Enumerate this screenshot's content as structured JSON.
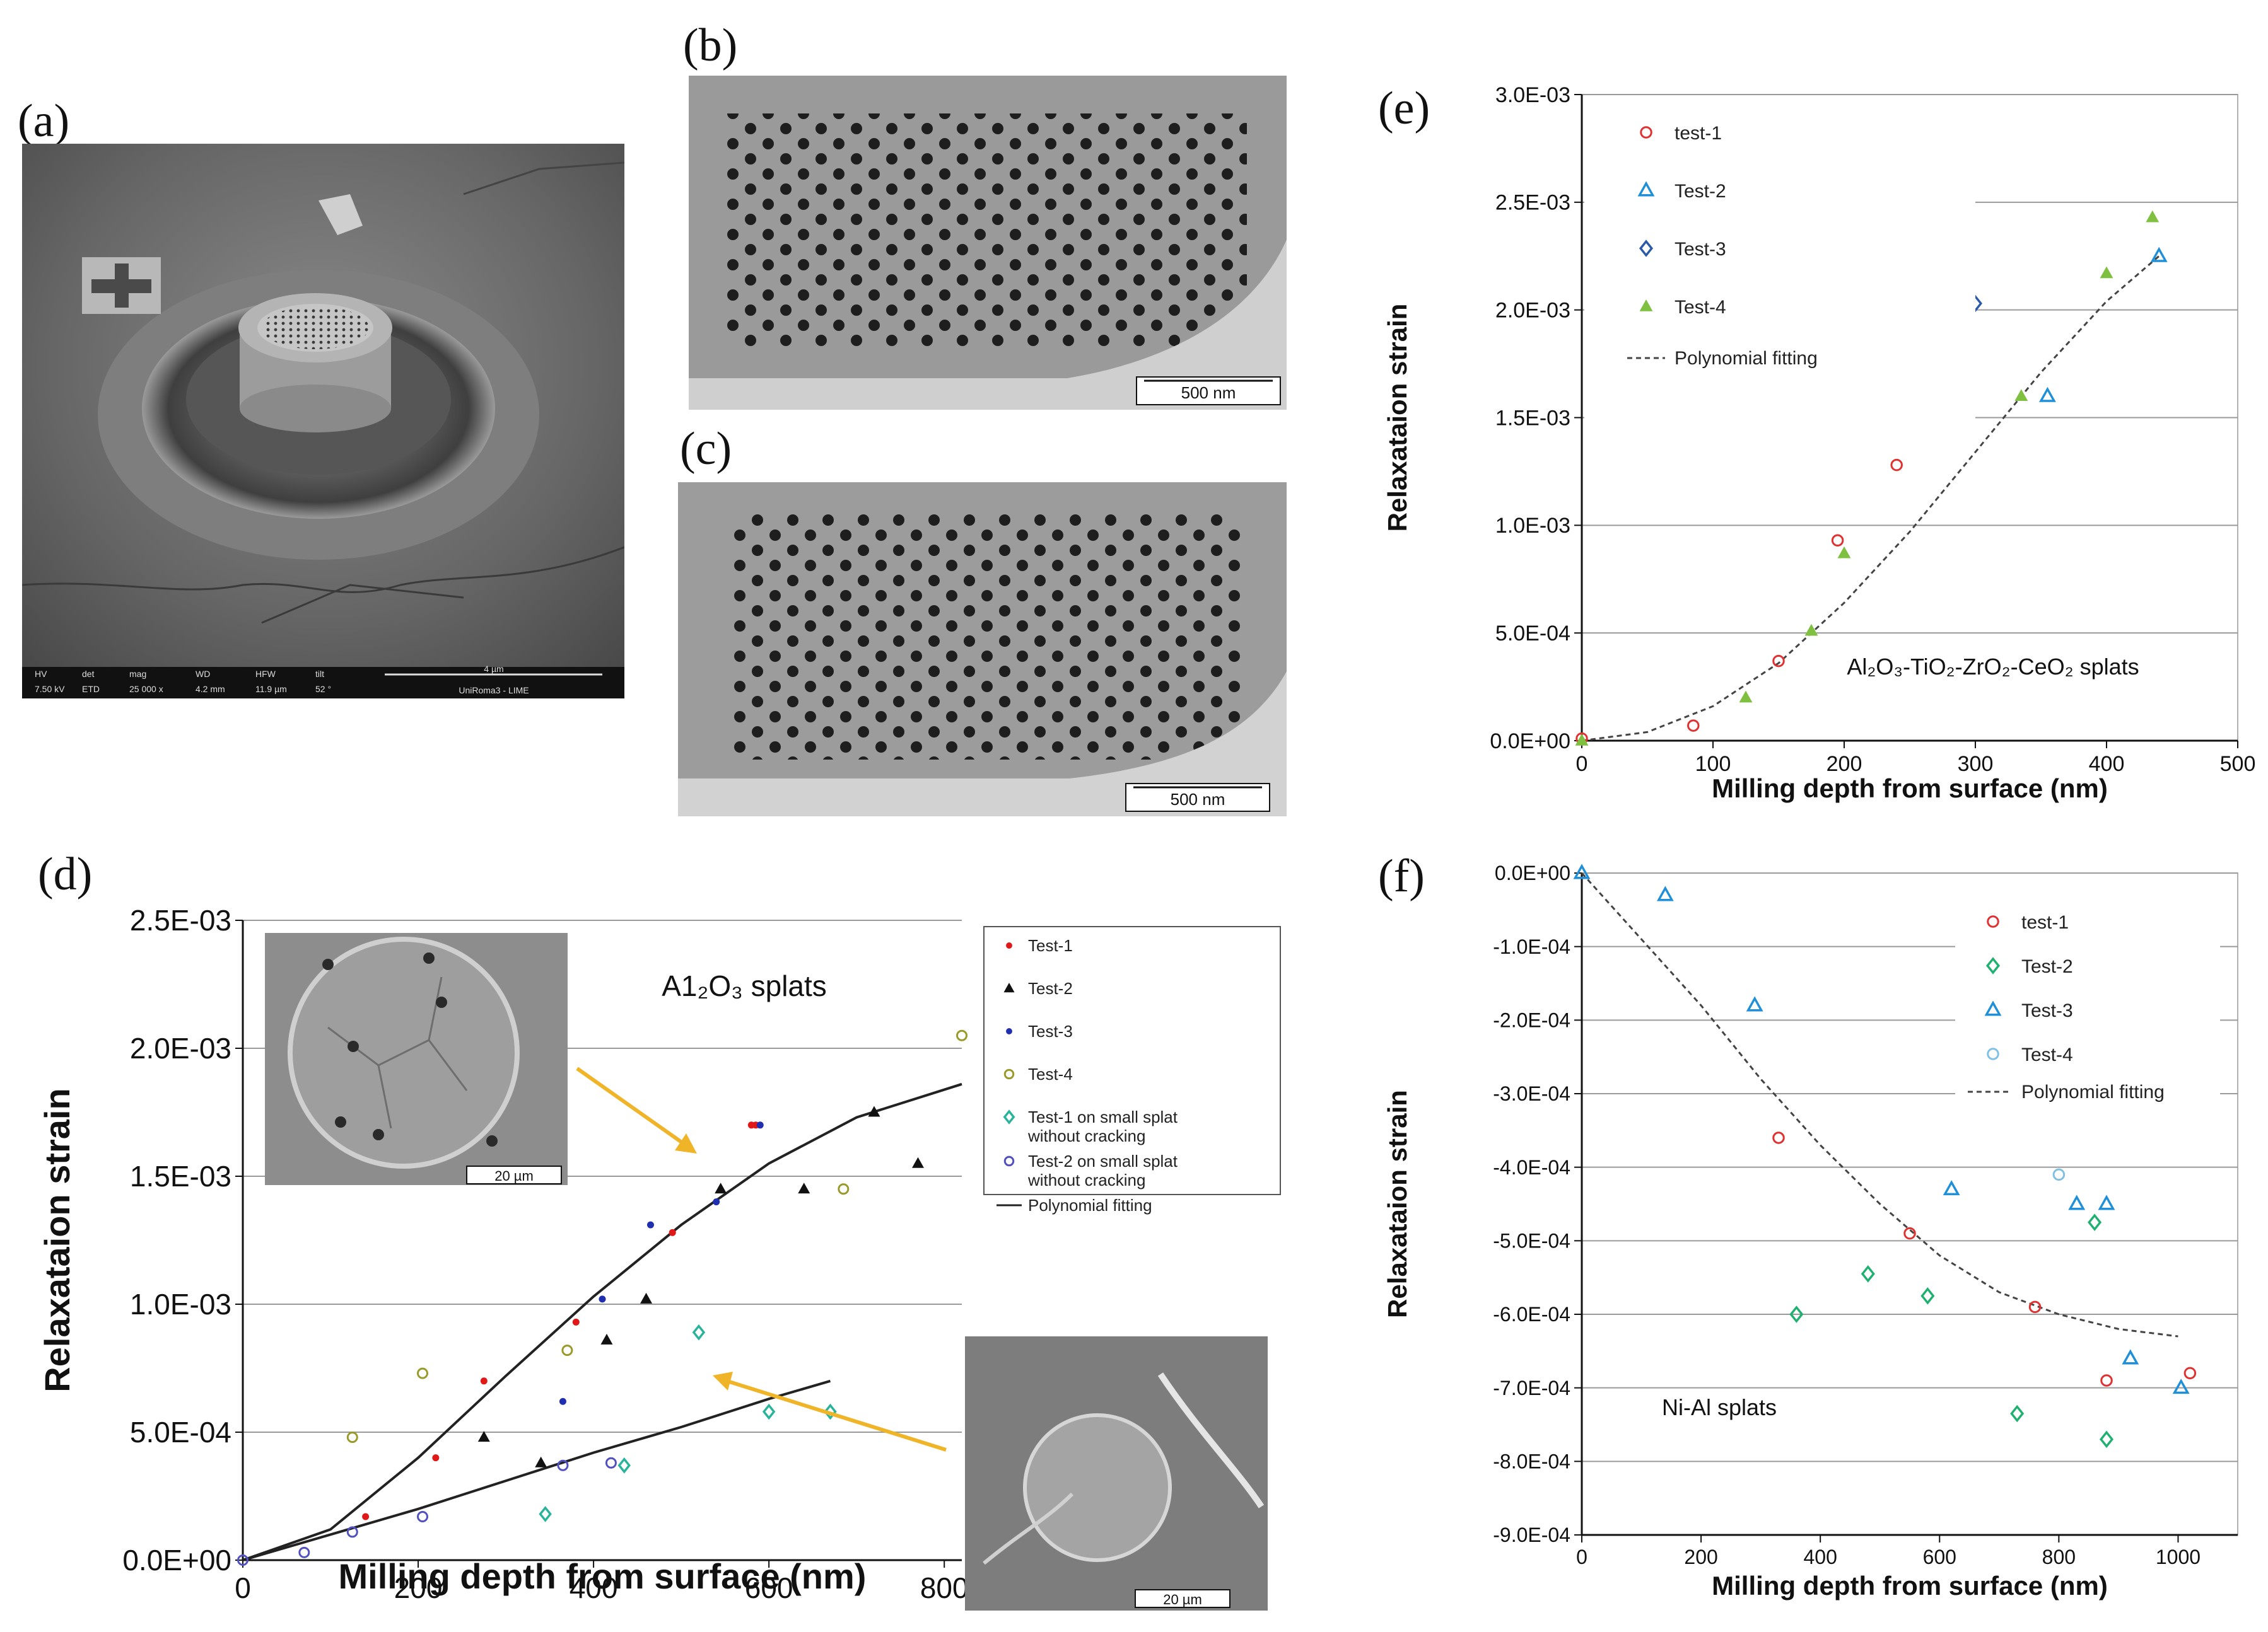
{
  "panels": {
    "a": {
      "letter": "(a)",
      "databar": {
        "labels": [
          "HV",
          "det",
          "mag",
          "WD",
          "HFW",
          "tilt"
        ],
        "values": [
          "7.50 kV",
          "ETD",
          "25 000 x",
          "4.2 mm",
          "11.9 µm",
          "52 °"
        ],
        "scale": "4 µm",
        "institution": "UniRoma3 - LIME"
      }
    },
    "b": {
      "letter": "(b)",
      "scale": "500 nm"
    },
    "c": {
      "letter": "(c)",
      "scale": "500 nm"
    },
    "d": {
      "letter": "(d)",
      "inset_top_scale": "20 µm",
      "inset_bottom_scale": "20 µm"
    },
    "e": {
      "letter": "(e)"
    },
    "f": {
      "letter": "(f)"
    }
  },
  "chart_data": [
    {
      "id": "d",
      "type": "scatter",
      "title": "A1₂O₃ splats",
      "xlabel": "Milling depth from surface (nm)",
      "ylabel": "Relaxataion strain",
      "xlim": [
        0,
        820
      ],
      "ylim": [
        0,
        0.0025
      ],
      "xticks": [
        "0",
        "200",
        "400",
        "600",
        "800"
      ],
      "yticks": [
        "0.0E+00",
        "5.0E-04",
        "1.0E-03",
        "1.5E-03",
        "2.0E-03",
        "2.5E-03"
      ],
      "grid": true,
      "legend_position": "top-right",
      "series": [
        {
          "name": "Test-1",
          "color": "#e01818",
          "marker": "dot",
          "x": [
            140,
            220,
            275,
            380,
            490,
            580,
            585
          ],
          "y": [
            0.00017,
            0.0004,
            0.0007,
            0.00093,
            0.00128,
            0.0017,
            0.0017
          ]
        },
        {
          "name": "Test-2",
          "color": "#111111",
          "marker": "triangle",
          "x": [
            275,
            340,
            415,
            460,
            545,
            640,
            720,
            770
          ],
          "y": [
            0.00048,
            0.00038,
            0.00086,
            0.00102,
            0.00145,
            0.00145,
            0.00175,
            0.00155
          ]
        },
        {
          "name": "Test-3",
          "color": "#1f2fb0",
          "marker": "dot",
          "x": [
            365,
            410,
            465,
            540,
            590
          ],
          "y": [
            0.00062,
            0.00102,
            0.00131,
            0.0014,
            0.0017
          ]
        },
        {
          "name": "Test-4",
          "color": "#9a9a2a",
          "marker": "circle",
          "x": [
            125,
            205,
            370,
            685,
            820
          ],
          "y": [
            0.00048,
            0.00073,
            0.00082,
            0.00145,
            0.00205
          ]
        },
        {
          "name": "Test-1 on small splat without cracking",
          "color": "#29b39a",
          "marker": "diamond",
          "x": [
            345,
            435,
            520,
            600,
            670
          ],
          "y": [
            0.00018,
            0.00037,
            0.00089,
            0.00058,
            0.00058
          ]
        },
        {
          "name": "Test-2 on small splat without cracking",
          "color": "#5050c0",
          "marker": "circle",
          "x": [
            0,
            70,
            125,
            205,
            365,
            420
          ],
          "y": [
            0.0,
            3e-05,
            0.00011,
            0.00017,
            0.00037,
            0.00038
          ]
        }
      ],
      "fits": [
        {
          "name": "Polynomial fitting",
          "style": "solid",
          "x": [
            0,
            100,
            200,
            300,
            400,
            500,
            600,
            700,
            820
          ],
          "y": [
            0.0,
            0.00012,
            0.0004,
            0.00072,
            0.00103,
            0.00131,
            0.00155,
            0.00173,
            0.00186
          ]
        },
        {
          "name": "",
          "style": "solid",
          "x": [
            0,
            100,
            200,
            300,
            400,
            500,
            600,
            670
          ],
          "y": [
            0.0,
            0.0001,
            0.0002,
            0.00031,
            0.00042,
            0.00052,
            0.00063,
            0.0007
          ]
        }
      ],
      "legend": [
        "Test-1",
        "Test-2",
        "Test-3",
        "Test-4",
        "Test-1 on small splat without cracking",
        "Test-2 on small splat without cracking",
        "Polynomial fitting"
      ]
    },
    {
      "id": "e",
      "type": "scatter",
      "annotation": "Al₂O₃-TiO₂-ZrO₂-CeO₂ splats",
      "xlabel": "Milling  depth from surface (nm)",
      "ylabel": "Relaxataion strain",
      "xlim": [
        0,
        500
      ],
      "ylim": [
        0,
        0.003
      ],
      "xticks": [
        "0",
        "100",
        "200",
        "300",
        "400",
        "500"
      ],
      "yticks": [
        "0.0E+00",
        "5.0E-04",
        "1.0E-03",
        "1.5E-03",
        "2.0E-03",
        "2.5E-03",
        "3.0E-03"
      ],
      "grid": true,
      "legend_position": "top-left",
      "series": [
        {
          "name": "test-1",
          "color": "#e03030",
          "marker": "circle",
          "x": [
            0,
            85,
            150,
            195,
            240
          ],
          "y": [
            1e-05,
            7e-05,
            0.00037,
            0.00093,
            0.00128
          ]
        },
        {
          "name": "Test-2",
          "color": "#1f8fd8",
          "marker": "triangle-open",
          "x": [
            355,
            440
          ],
          "y": [
            0.0016,
            0.00225
          ]
        },
        {
          "name": "Test-3",
          "color": "#2a5aa8",
          "marker": "diamond",
          "x": [
            300
          ],
          "y": [
            0.00203
          ]
        },
        {
          "name": "Test-4",
          "color": "#7fc040",
          "marker": "triangle",
          "x": [
            0,
            125,
            175,
            200,
            335,
            400,
            435
          ],
          "y": [
            0.0,
            0.0002,
            0.00051,
            0.00087,
            0.0016,
            0.00217,
            0.00243
          ]
        }
      ],
      "fits": [
        {
          "name": "Polynomial fitting",
          "style": "dashed",
          "x": [
            0,
            50,
            100,
            150,
            200,
            250,
            300,
            350,
            400,
            440
          ],
          "y": [
            0.0,
            4e-05,
            0.00016,
            0.00036,
            0.00064,
            0.00097,
            0.00134,
            0.00171,
            0.00204,
            0.00225
          ]
        }
      ],
      "legend": [
        "test-1",
        "Test-2",
        "Test-3",
        "Test-4",
        "Polynomial fitting"
      ]
    },
    {
      "id": "f",
      "type": "scatter",
      "annotation": "Ni-Al splats",
      "xlabel": "Milling  depth from surface (nm)",
      "ylabel": "Relaxataion strain",
      "xlim": [
        0,
        1100
      ],
      "ylim": [
        -0.0009,
        0
      ],
      "xticks": [
        "0",
        "200",
        "400",
        "600",
        "800",
        "1000"
      ],
      "yticks": [
        "0.0E+00",
        "-1.0E-04",
        "-2.0E-04",
        "-3.0E-04",
        "-4.0E-04",
        "-5.0E-04",
        "-6.0E-04",
        "-7.0E-04",
        "-8.0E-04",
        "-9.0E-04"
      ],
      "grid": true,
      "legend_position": "top-right",
      "series": [
        {
          "name": "test-1",
          "color": "#e03030",
          "marker": "circle",
          "x": [
            330,
            550,
            760,
            880,
            1020
          ],
          "y": [
            -0.00036,
            -0.00049,
            -0.00059,
            -0.00069,
            -0.00068
          ]
        },
        {
          "name": "Test-2",
          "color": "#20b070",
          "marker": "diamond",
          "x": [
            360,
            480,
            580,
            730,
            860,
            880
          ],
          "y": [
            -0.0006,
            -0.000545,
            -0.000575,
            -0.000735,
            -0.000475,
            -0.00077
          ]
        },
        {
          "name": "Test-3",
          "color": "#1f8fd8",
          "marker": "triangle-open",
          "x": [
            0,
            140,
            290,
            620,
            830,
            880,
            920,
            1005
          ],
          "y": [
            0.0,
            -3e-05,
            -0.00018,
            -0.00043,
            -0.00045,
            -0.00045,
            -0.00066,
            -0.0007
          ]
        },
        {
          "name": "Test-4",
          "color": "#80c0e0",
          "marker": "circle",
          "x": [
            800
          ],
          "y": [
            -0.00041
          ]
        }
      ],
      "fits": [
        {
          "name": "Polynomial fitting",
          "style": "dashed",
          "x": [
            0,
            100,
            200,
            300,
            400,
            500,
            600,
            700,
            800,
            900,
            1000
          ],
          "y": [
            0.0,
            -9e-05,
            -0.00018,
            -0.00028,
            -0.00037,
            -0.00045,
            -0.00052,
            -0.00057,
            -0.0006,
            -0.00062,
            -0.00063
          ]
        }
      ],
      "legend": [
        "test-1",
        "Test-2",
        "Test-3",
        "Test-4",
        "Polynomial fitting"
      ]
    }
  ]
}
